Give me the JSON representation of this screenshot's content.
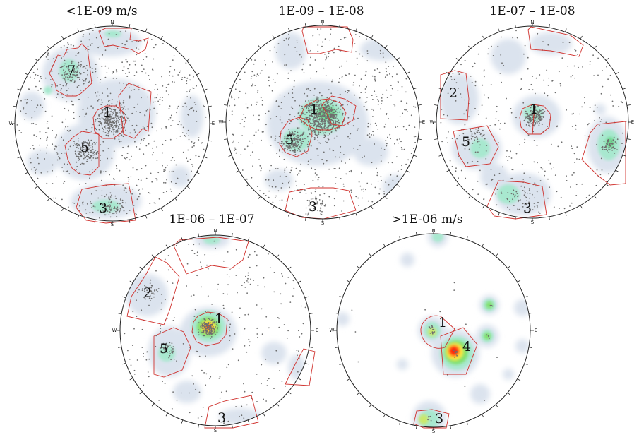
{
  "colors": {
    "background": "#ffffff",
    "outline": "#222222",
    "window": "#d0312d",
    "pole": "#6e6e6e",
    "density_low": "#dbe3ee",
    "density_mid": "#9fe3c4",
    "density_high": "#46d36b",
    "density_peak": "#ff2a10"
  },
  "compass": {
    "north": "N",
    "south": "S",
    "east": "E",
    "west": "W"
  },
  "plots": [
    {
      "title": "<1E-09 m/s",
      "pole_density": "high",
      "sets": [
        {
          "label": "7"
        },
        {
          "label": "1"
        },
        {
          "label": "5"
        },
        {
          "label": "3"
        }
      ]
    },
    {
      "title": "1E-09 – 1E-08",
      "pole_density": "high",
      "sets": [
        {
          "label": "1"
        },
        {
          "label": "5"
        },
        {
          "label": "3"
        }
      ]
    },
    {
      "title": "1E-07 – 1E-08",
      "pole_density": "medium",
      "sets": [
        {
          "label": "2"
        },
        {
          "label": "1"
        },
        {
          "label": "5"
        },
        {
          "label": "3"
        }
      ]
    },
    {
      "title": "1E-06 – 1E-07",
      "pole_density": "medium",
      "sets": [
        {
          "label": "2"
        },
        {
          "label": "1"
        },
        {
          "label": "5"
        },
        {
          "label": "3"
        }
      ]
    },
    {
      "title": ">1E-06 m/s",
      "pole_density": "sparse",
      "sets": [
        {
          "label": "1"
        },
        {
          "label": "4"
        },
        {
          "label": "3"
        }
      ]
    }
  ]
}
